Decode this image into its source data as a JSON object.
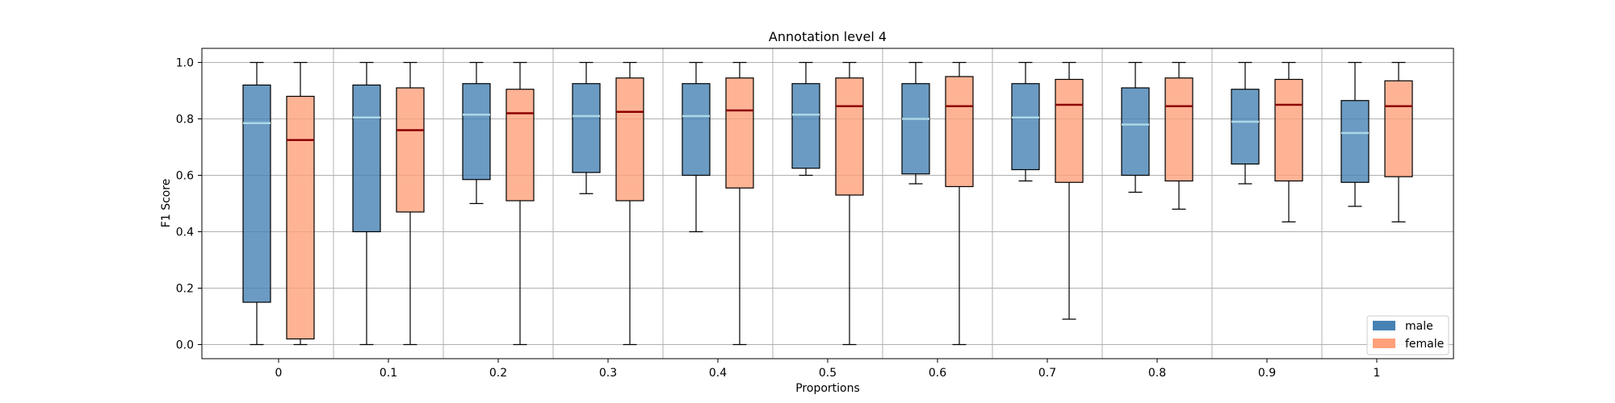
{
  "chart_data": {
    "type": "box",
    "title": "Annotation level 4",
    "xlabel": "Proportions",
    "ylabel": "F1 Score",
    "categories": [
      "0",
      "0.1",
      "0.2",
      "0.3",
      "0.4",
      "0.5",
      "0.6",
      "0.7",
      "0.8",
      "0.9",
      "1"
    ],
    "ylim": [
      -0.05,
      1.05
    ],
    "yticks": [
      "0.0",
      "0.2",
      "0.4",
      "0.6",
      "0.8",
      "1.0"
    ],
    "grid": true,
    "legend_position": "lower-right",
    "series": [
      {
        "name": "male",
        "color": "#4682b4",
        "median_color": "#add8e6",
        "boxes": [
          {
            "whislo": 0.0,
            "q1": 0.15,
            "med": 0.785,
            "q3": 0.92,
            "whishi": 1.0
          },
          {
            "whislo": 0.0,
            "q1": 0.4,
            "med": 0.805,
            "q3": 0.92,
            "whishi": 1.0
          },
          {
            "whislo": 0.5,
            "q1": 0.585,
            "med": 0.815,
            "q3": 0.925,
            "whishi": 1.0
          },
          {
            "whislo": 0.535,
            "q1": 0.61,
            "med": 0.81,
            "q3": 0.925,
            "whishi": 1.0
          },
          {
            "whislo": 0.4,
            "q1": 0.6,
            "med": 0.81,
            "q3": 0.925,
            "whishi": 1.0
          },
          {
            "whislo": 0.6,
            "q1": 0.625,
            "med": 0.815,
            "q3": 0.925,
            "whishi": 1.0
          },
          {
            "whislo": 0.57,
            "q1": 0.605,
            "med": 0.8,
            "q3": 0.925,
            "whishi": 1.0
          },
          {
            "whislo": 0.58,
            "q1": 0.62,
            "med": 0.805,
            "q3": 0.925,
            "whishi": 1.0
          },
          {
            "whislo": 0.54,
            "q1": 0.6,
            "med": 0.78,
            "q3": 0.91,
            "whishi": 1.0
          },
          {
            "whislo": 0.57,
            "q1": 0.64,
            "med": 0.79,
            "q3": 0.905,
            "whishi": 1.0
          },
          {
            "whislo": 0.49,
            "q1": 0.575,
            "med": 0.75,
            "q3": 0.865,
            "whishi": 1.0
          }
        ]
      },
      {
        "name": "female",
        "color": "#ffa07a",
        "median_color": "#8b0000",
        "boxes": [
          {
            "whislo": 0.0,
            "q1": 0.02,
            "med": 0.725,
            "q3": 0.88,
            "whishi": 1.0
          },
          {
            "whislo": 0.0,
            "q1": 0.47,
            "med": 0.76,
            "q3": 0.91,
            "whishi": 1.0
          },
          {
            "whislo": 0.0,
            "q1": 0.51,
            "med": 0.82,
            "q3": 0.905,
            "whishi": 1.0
          },
          {
            "whislo": 0.0,
            "q1": 0.51,
            "med": 0.825,
            "q3": 0.945,
            "whishi": 1.0
          },
          {
            "whislo": 0.0,
            "q1": 0.555,
            "med": 0.83,
            "q3": 0.945,
            "whishi": 1.0
          },
          {
            "whislo": 0.0,
            "q1": 0.53,
            "med": 0.845,
            "q3": 0.945,
            "whishi": 1.0
          },
          {
            "whislo": 0.0,
            "q1": 0.56,
            "med": 0.845,
            "q3": 0.95,
            "whishi": 1.0
          },
          {
            "whislo": 0.09,
            "q1": 0.575,
            "med": 0.85,
            "q3": 0.94,
            "whishi": 1.0
          },
          {
            "whislo": 0.48,
            "q1": 0.58,
            "med": 0.845,
            "q3": 0.945,
            "whishi": 1.0
          },
          {
            "whislo": 0.435,
            "q1": 0.58,
            "med": 0.85,
            "q3": 0.94,
            "whishi": 1.0
          },
          {
            "whislo": 0.435,
            "q1": 0.595,
            "med": 0.845,
            "q3": 0.935,
            "whishi": 1.0
          }
        ]
      }
    ]
  }
}
